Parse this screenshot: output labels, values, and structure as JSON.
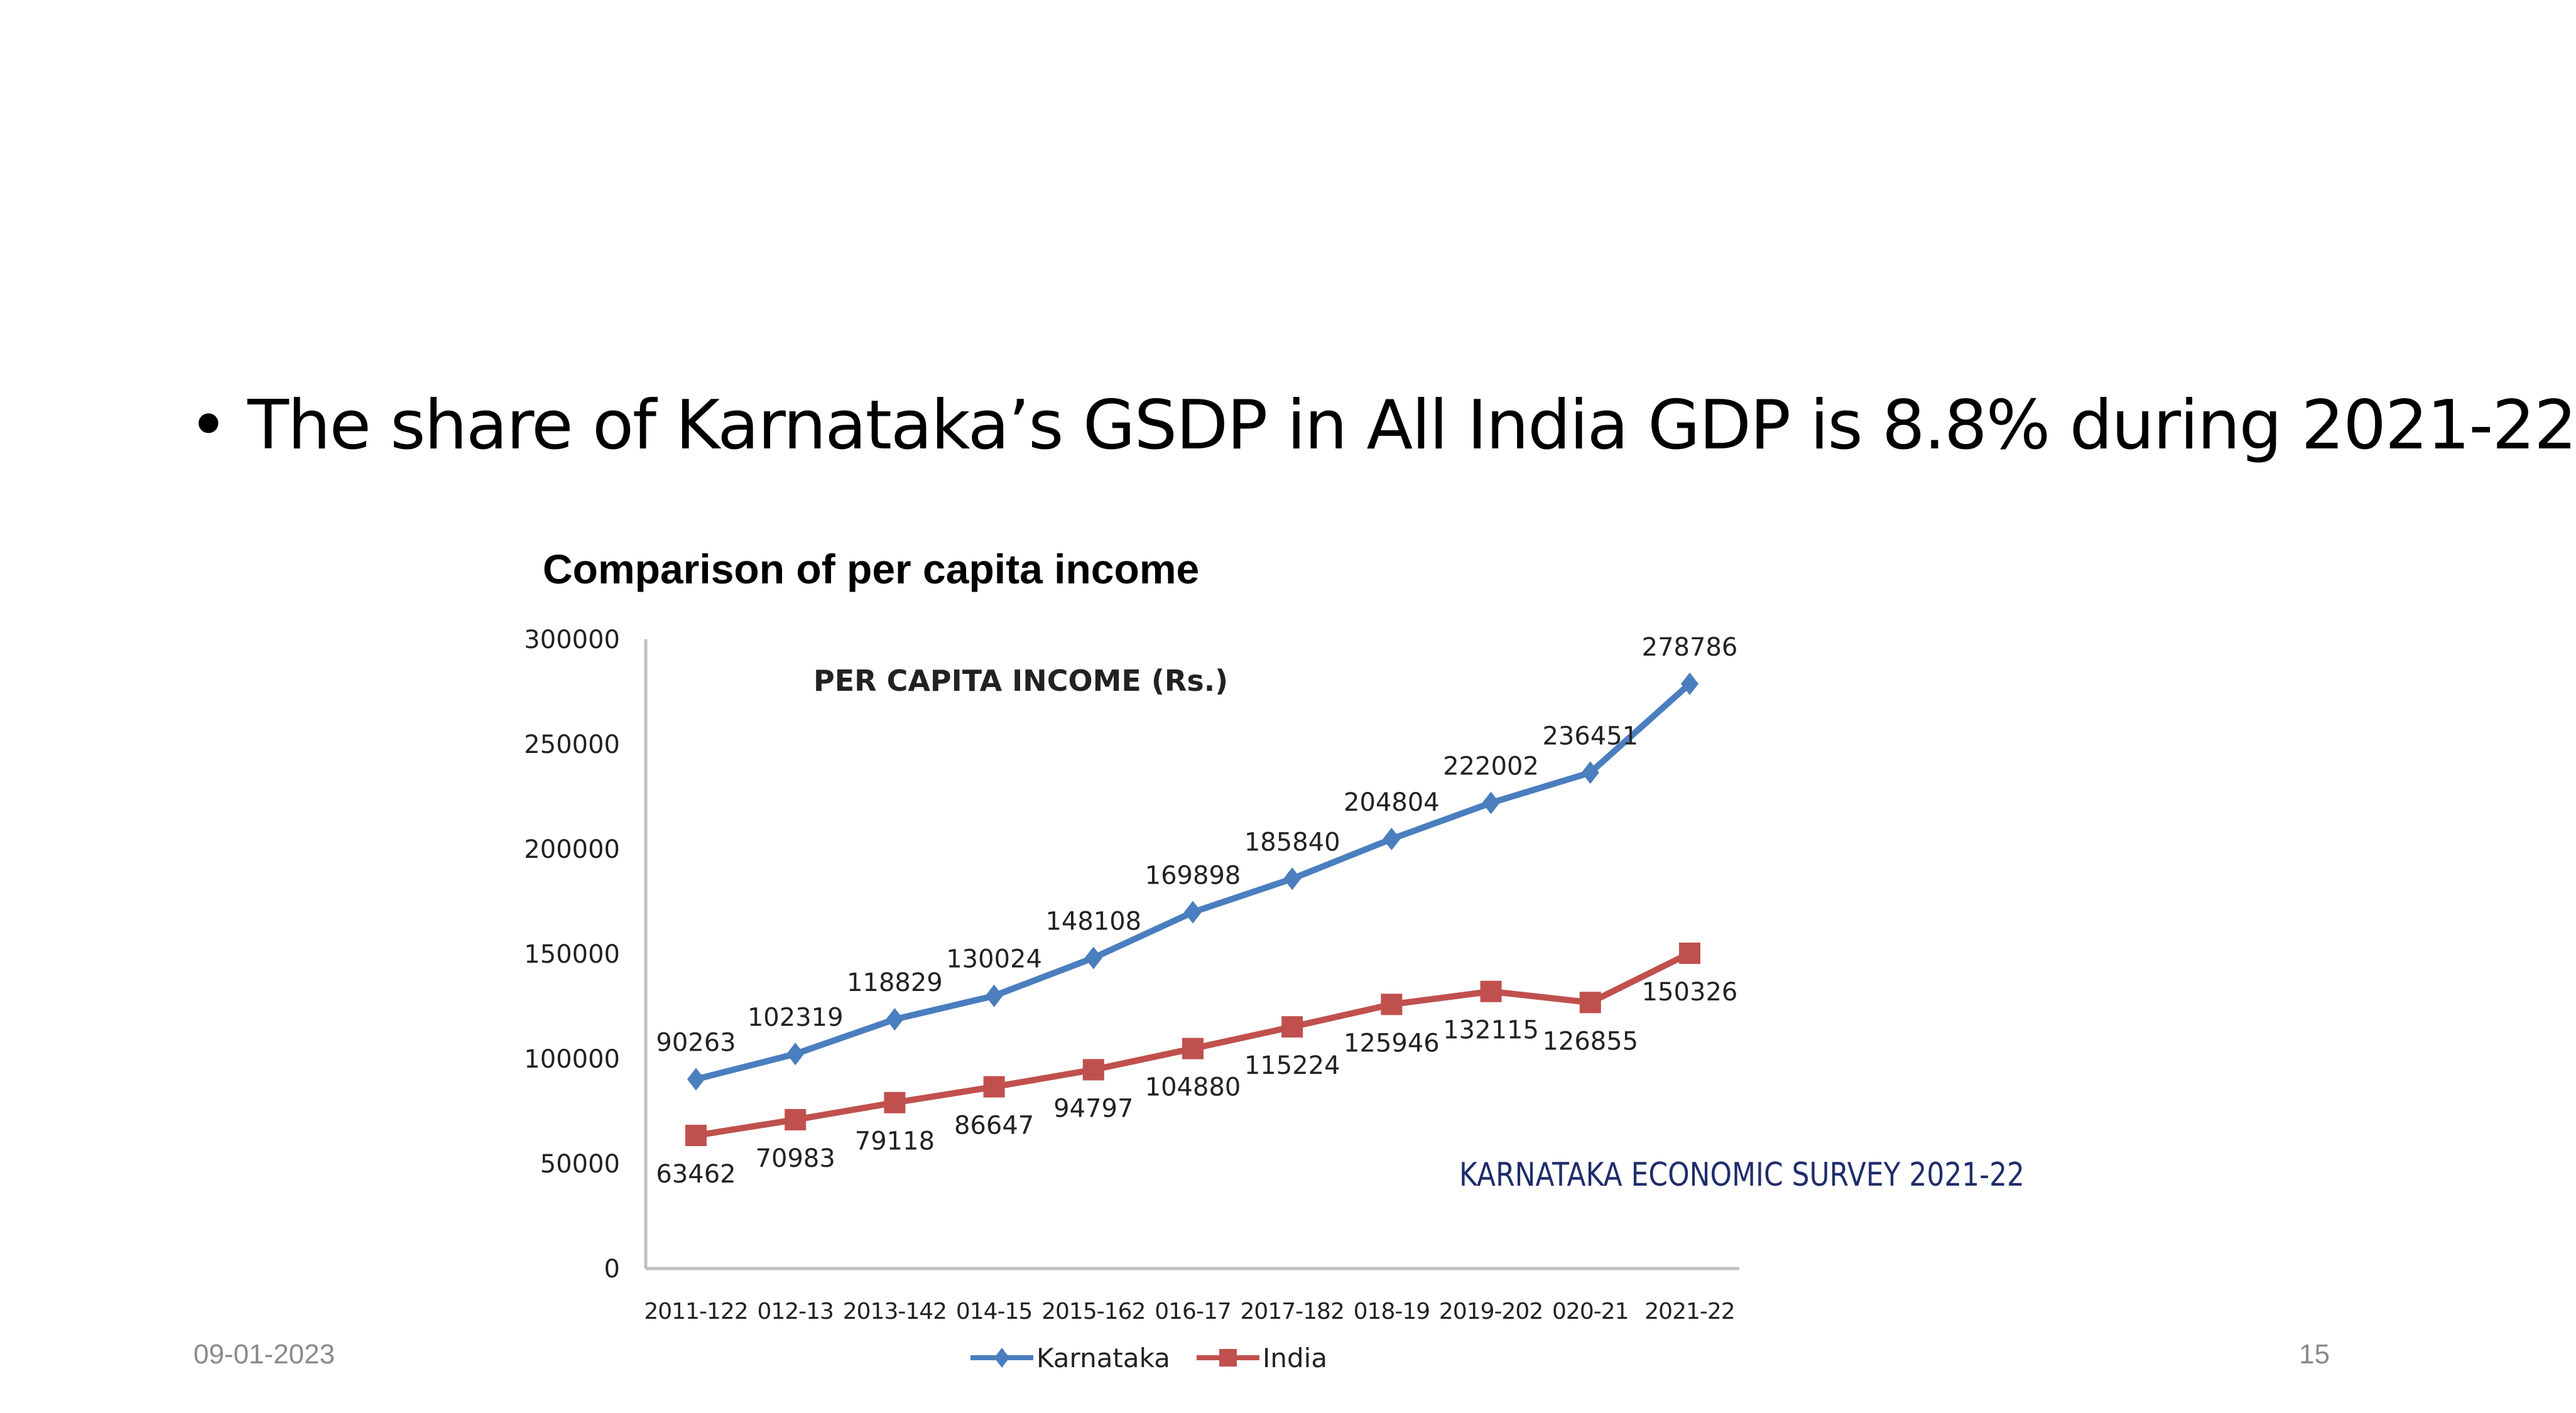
{
  "slide": {
    "bullet_text": "The share of Karnataka’s GSDP in All India GDP is 8.8% during 2021-22",
    "heading": "Comparison of per capita income",
    "footer_date": "09-01-2023",
    "page_number": "15",
    "source_note": "KARNATAKA ECONOMIC SURVEY 2021-22"
  },
  "chart_data": {
    "type": "line",
    "title": "PER CAPITA INCOME (Rs.)",
    "categories": [
      "2011-122",
      "012-13",
      "2013-142",
      "014-15",
      "2015-162",
      "016-17",
      "2017-182",
      "018-19",
      "2019-202",
      "020-21",
      "2021-22"
    ],
    "series": [
      {
        "name": "Karnataka",
        "color": "#4a7ebf",
        "marker": "diamond",
        "values": [
          90263,
          102319,
          118829,
          130024,
          148108,
          169898,
          185840,
          204804,
          222002,
          236451,
          278786
        ]
      },
      {
        "name": "India",
        "color": "#c0504d",
        "marker": "square",
        "values": [
          63462,
          70983,
          79118,
          86647,
          94797,
          104880,
          115224,
          125946,
          132115,
          126855,
          150326
        ]
      }
    ],
    "yticks": [
      0,
      50000,
      100000,
      150000,
      200000,
      250000,
      300000
    ],
    "ylim": [
      0,
      300000
    ],
    "grid": false,
    "legend": "bottom",
    "data_labels": true
  }
}
